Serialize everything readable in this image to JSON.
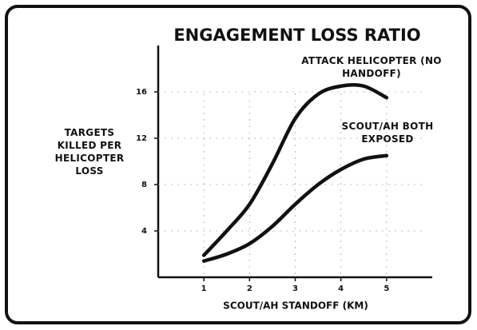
{
  "chart_data": {
    "type": "line",
    "title": "ENGAGEMENT LOSS RATIO",
    "xlabel": "SCOUT/AH STANDOFF (KM)",
    "ylabel": "TARGETS KILLED PER HELICOPTER LOSS",
    "x": [
      1,
      1.5,
      2,
      2.5,
      3,
      3.5,
      4,
      4.5,
      5
    ],
    "series": [
      {
        "name": "ATTACK HELICOPTER (NO HANDOFF)",
        "color": "#111111",
        "values": [
          1.9,
          4.0,
          6.3,
          9.8,
          13.7,
          15.8,
          16.5,
          16.5,
          15.5
        ]
      },
      {
        "name": "SCOUT/AH BOTH EXPOSED",
        "color": "#111111",
        "values": [
          1.4,
          2.0,
          2.9,
          4.4,
          6.3,
          8.0,
          9.3,
          10.2,
          10.5
        ]
      }
    ],
    "xlim": [
      0,
      6
    ],
    "xticks": [
      1,
      2,
      3,
      4,
      5
    ],
    "ylim": [
      0,
      20
    ],
    "yticks": [
      4,
      8,
      12,
      16
    ],
    "grid": true
  }
}
